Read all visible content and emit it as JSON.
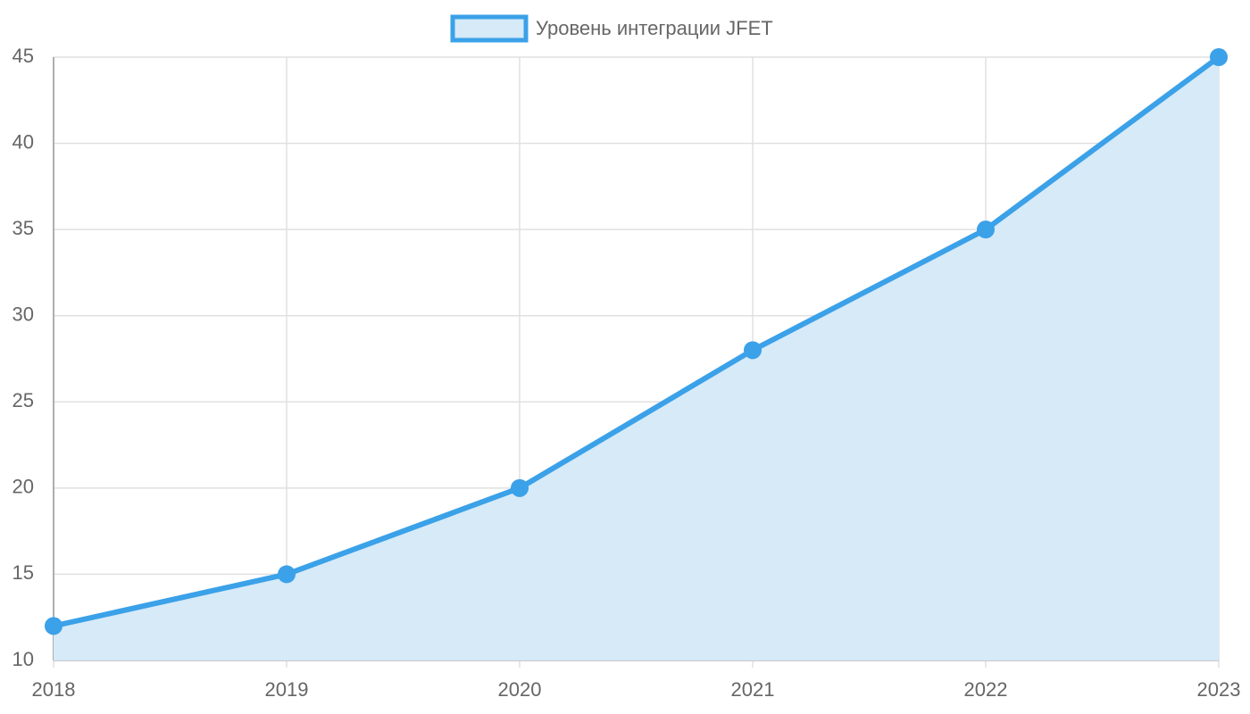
{
  "chart_data": {
    "type": "line",
    "categories": [
      "2018",
      "2019",
      "2020",
      "2021",
      "2022",
      "2023"
    ],
    "series": [
      {
        "name": "Уровень интеграции JFET",
        "color": "#3ba1e8",
        "fill_color": "#d6eaf8",
        "values": [
          12,
          15,
          20,
          28,
          35,
          45
        ]
      }
    ],
    "fill": true,
    "ylim": [
      10,
      45
    ],
    "yticks": [
      10,
      15,
      20,
      25,
      30,
      35,
      40,
      45
    ],
    "grid": true,
    "legend": "top"
  }
}
